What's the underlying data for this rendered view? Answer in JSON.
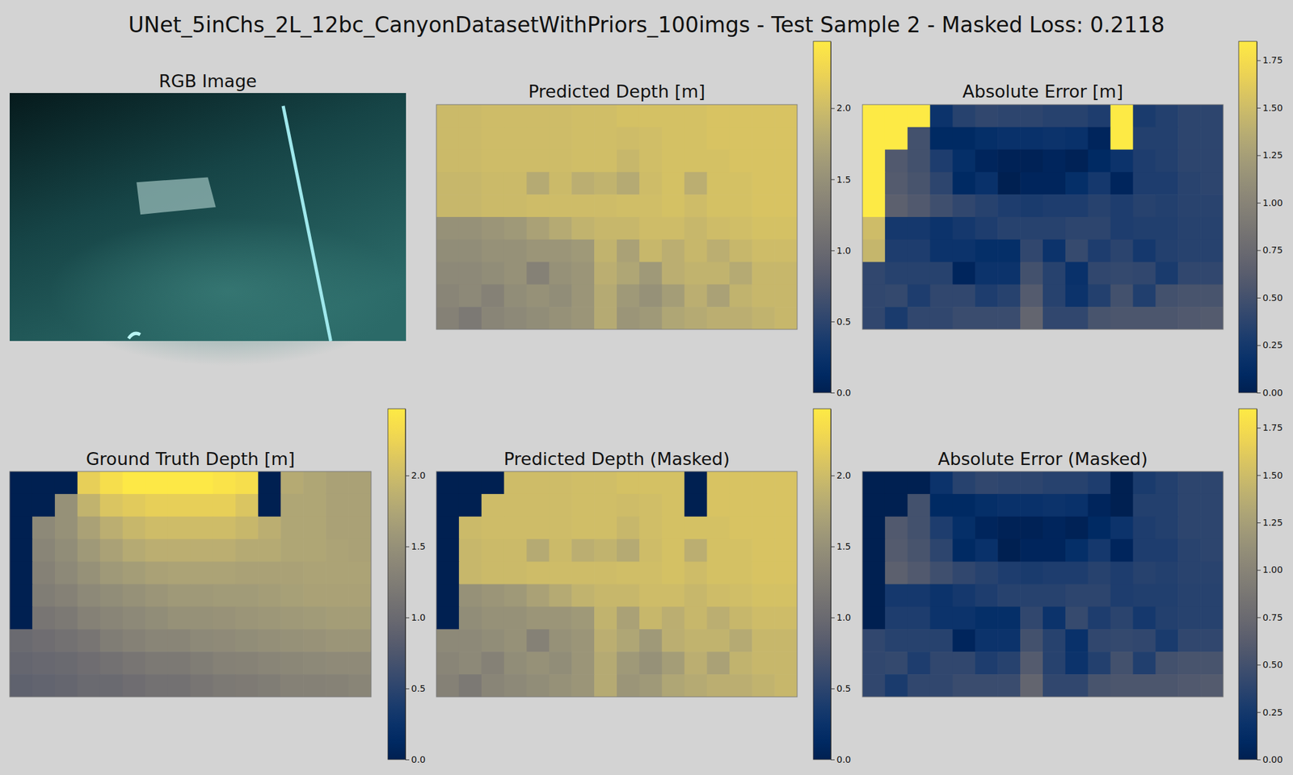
{
  "title": "UNet_5inChs_2L_12bc_CanyonDatasetWithPriors_100imgs - Test Sample 2 - Masked Loss: 0.2118",
  "chart_data": [
    {
      "type": "image",
      "title": "RGB Image"
    },
    {
      "type": "heatmap",
      "title": "Predicted Depth [m]",
      "color": "cividis",
      "tick_labels": false,
      "cells": [
        [
          1.98,
          1.98,
          2.0,
          2.0,
          2.0,
          2.0,
          2.02,
          2.02,
          2.05,
          2.05,
          2.05,
          2.05,
          2.08,
          2.08,
          2.08,
          2.08
        ],
        [
          1.98,
          1.98,
          2.0,
          2.0,
          2.0,
          2.0,
          2.02,
          2.02,
          2.0,
          2.02,
          2.05,
          2.05,
          2.08,
          2.08,
          2.08,
          2.08
        ],
        [
          1.98,
          1.98,
          2.0,
          2.0,
          2.0,
          2.0,
          2.02,
          2.02,
          1.95,
          2.02,
          2.05,
          2.05,
          2.05,
          2.08,
          2.08,
          2.08
        ],
        [
          1.95,
          1.95,
          1.98,
          1.98,
          1.8,
          1.98,
          1.85,
          1.9,
          1.8,
          2.0,
          2.05,
          1.85,
          2.05,
          2.05,
          2.08,
          2.08
        ],
        [
          1.95,
          1.95,
          1.98,
          1.98,
          2.0,
          2.0,
          2.0,
          2.0,
          2.02,
          2.02,
          2.05,
          2.0,
          2.05,
          2.05,
          2.08,
          2.08
        ],
        [
          1.5,
          1.5,
          1.55,
          1.6,
          1.7,
          1.8,
          1.9,
          1.95,
          1.95,
          2.0,
          2.0,
          1.95,
          2.0,
          2.02,
          2.05,
          2.05
        ],
        [
          1.45,
          1.45,
          1.5,
          1.5,
          1.55,
          1.55,
          1.6,
          1.9,
          1.7,
          1.95,
          1.85,
          1.95,
          1.85,
          1.95,
          2.0,
          2.0
        ],
        [
          1.4,
          1.4,
          1.45,
          1.5,
          1.3,
          1.5,
          1.55,
          1.85,
          1.75,
          1.6,
          1.85,
          1.9,
          1.9,
          1.8,
          1.95,
          1.95
        ],
        [
          1.35,
          1.4,
          1.3,
          1.45,
          1.5,
          1.45,
          1.55,
          1.8,
          1.6,
          1.5,
          1.65,
          1.85,
          1.7,
          1.9,
          1.95,
          1.95
        ],
        [
          1.3,
          1.2,
          1.35,
          1.4,
          1.45,
          1.5,
          1.55,
          1.8,
          1.55,
          1.6,
          1.75,
          1.8,
          1.85,
          1.85,
          1.9,
          1.95
        ]
      ],
      "colorbar": {
        "range": [
          0,
          2.47
        ],
        "ticks": [
          {
            "value": 0,
            "label": "0.0"
          },
          {
            "value": 0.5,
            "label": "0.5"
          },
          {
            "value": 1,
            "label": "1.0"
          },
          {
            "value": 1.5,
            "label": "1.5"
          },
          {
            "value": 2,
            "label": "2.0"
          }
        ]
      }
    },
    {
      "type": "heatmap",
      "title": "Absolute Error [m]",
      "color": "cividis",
      "tick_labels": false,
      "cells": [
        [
          1.85,
          1.85,
          1.85,
          0.2,
          0.35,
          0.4,
          0.38,
          0.38,
          0.35,
          0.35,
          0.3,
          1.85,
          0.28,
          0.33,
          0.38,
          0.38
        ],
        [
          1.85,
          1.85,
          0.5,
          0.1,
          0.1,
          0.15,
          0.18,
          0.18,
          0.2,
          0.18,
          0.05,
          1.85,
          0.33,
          0.33,
          0.38,
          0.38
        ],
        [
          1.85,
          0.58,
          0.5,
          0.3,
          0.15,
          0.05,
          0.02,
          0.02,
          0.05,
          0.02,
          0.1,
          0.2,
          0.3,
          0.33,
          0.38,
          0.38
        ],
        [
          1.85,
          0.6,
          0.53,
          0.38,
          0.1,
          0.18,
          0.0,
          0.05,
          0.05,
          0.15,
          0.25,
          0.05,
          0.3,
          0.3,
          0.36,
          0.38
        ],
        [
          1.85,
          0.65,
          0.58,
          0.48,
          0.4,
          0.35,
          0.3,
          0.28,
          0.3,
          0.3,
          0.35,
          0.3,
          0.35,
          0.33,
          0.36,
          0.36
        ],
        [
          1.5,
          0.25,
          0.25,
          0.2,
          0.25,
          0.3,
          0.35,
          0.35,
          0.35,
          0.38,
          0.38,
          0.3,
          0.32,
          0.32,
          0.35,
          0.35
        ],
        [
          1.45,
          0.3,
          0.3,
          0.2,
          0.2,
          0.15,
          0.15,
          0.4,
          0.2,
          0.43,
          0.3,
          0.37,
          0.25,
          0.33,
          0.35,
          0.35
        ],
        [
          0.4,
          0.35,
          0.35,
          0.35,
          0.05,
          0.2,
          0.2,
          0.5,
          0.35,
          0.18,
          0.4,
          0.42,
          0.4,
          0.28,
          0.4,
          0.4
        ],
        [
          0.4,
          0.42,
          0.3,
          0.4,
          0.4,
          0.3,
          0.35,
          0.6,
          0.35,
          0.2,
          0.33,
          0.5,
          0.32,
          0.5,
          0.53,
          0.53
        ],
        [
          0.4,
          0.28,
          0.4,
          0.4,
          0.45,
          0.45,
          0.45,
          0.7,
          0.4,
          0.4,
          0.53,
          0.55,
          0.55,
          0.55,
          0.58,
          0.6
        ]
      ],
      "colorbar": {
        "range": [
          0,
          1.85
        ],
        "ticks": [
          {
            "value": 0,
            "label": "0.00"
          },
          {
            "value": 0.25,
            "label": "0.25"
          },
          {
            "value": 0.5,
            "label": "0.50"
          },
          {
            "value": 0.75,
            "label": "0.75"
          },
          {
            "value": 1,
            "label": "1.00"
          },
          {
            "value": 1.25,
            "label": "1.25"
          },
          {
            "value": 1.5,
            "label": "1.50"
          },
          {
            "value": 1.75,
            "label": "1.75"
          }
        ]
      }
    },
    {
      "type": "heatmap",
      "title": "Ground Truth Depth [m]",
      "color": "cividis",
      "tick_labels": false,
      "cells": [
        [
          0,
          0,
          0,
          2.2,
          2.35,
          2.45,
          2.45,
          2.45,
          2.45,
          2.4,
          2.35,
          0,
          1.8,
          1.75,
          1.7,
          1.7
        ],
        [
          0,
          0,
          1.5,
          1.9,
          2.1,
          2.15,
          2.2,
          2.2,
          2.2,
          2.2,
          2.1,
          0,
          1.75,
          1.75,
          1.7,
          1.7
        ],
        [
          0,
          1.4,
          1.5,
          1.7,
          1.85,
          1.95,
          2.0,
          2.0,
          2.0,
          2.0,
          1.95,
          1.85,
          1.75,
          1.75,
          1.7,
          1.7
        ],
        [
          0,
          1.35,
          1.45,
          1.6,
          1.7,
          1.8,
          1.85,
          1.85,
          1.85,
          1.85,
          1.8,
          1.8,
          1.75,
          1.75,
          1.72,
          1.7
        ],
        [
          0,
          1.3,
          1.4,
          1.5,
          1.6,
          1.65,
          1.7,
          1.72,
          1.72,
          1.72,
          1.7,
          1.7,
          1.7,
          1.72,
          1.72,
          1.72
        ],
        [
          0,
          1.25,
          1.3,
          1.4,
          1.45,
          1.5,
          1.55,
          1.6,
          1.6,
          1.62,
          1.62,
          1.65,
          1.68,
          1.7,
          1.7,
          1.7
        ],
        [
          0,
          1.15,
          1.2,
          1.3,
          1.35,
          1.4,
          1.45,
          1.5,
          1.5,
          1.52,
          1.55,
          1.58,
          1.6,
          1.62,
          1.65,
          1.65
        ],
        [
          1.0,
          1.05,
          1.1,
          1.15,
          1.25,
          1.3,
          1.35,
          1.35,
          1.4,
          1.42,
          1.45,
          1.48,
          1.5,
          1.52,
          1.55,
          1.55
        ],
        [
          0.95,
          0.98,
          1.0,
          1.05,
          1.1,
          1.15,
          1.2,
          1.2,
          1.25,
          1.3,
          1.32,
          1.35,
          1.38,
          1.4,
          1.42,
          1.42
        ],
        [
          0.9,
          0.92,
          0.95,
          1.0,
          1.0,
          1.05,
          1.1,
          1.1,
          1.15,
          1.2,
          1.22,
          1.25,
          1.3,
          1.3,
          1.32,
          1.35
        ]
      ],
      "colorbar": {
        "range": [
          0,
          2.47
        ],
        "ticks": [
          {
            "value": 0,
            "label": "0.0"
          },
          {
            "value": 0.5,
            "label": "0.5"
          },
          {
            "value": 1,
            "label": "1.0"
          },
          {
            "value": 1.5,
            "label": "1.5"
          },
          {
            "value": 2,
            "label": "2.0"
          }
        ]
      }
    },
    {
      "type": "heatmap",
      "title": "Predicted Depth (Masked)",
      "color": "cividis",
      "tick_labels": false,
      "cells": [
        [
          0,
          0,
          0,
          2.0,
          2.0,
          2.0,
          2.02,
          2.02,
          2.05,
          2.05,
          2.05,
          0,
          2.08,
          2.08,
          2.08,
          2.08
        ],
        [
          0,
          0,
          2.0,
          2.0,
          2.0,
          2.0,
          2.02,
          2.02,
          2.0,
          2.02,
          2.05,
          0,
          2.08,
          2.08,
          2.08,
          2.08
        ],
        [
          0,
          1.98,
          2.0,
          2.0,
          2.0,
          2.0,
          2.02,
          2.02,
          1.95,
          2.02,
          2.05,
          2.05,
          2.05,
          2.08,
          2.08,
          2.08
        ],
        [
          0,
          1.95,
          1.98,
          1.98,
          1.8,
          1.98,
          1.85,
          1.9,
          1.8,
          2.0,
          2.05,
          1.85,
          2.05,
          2.05,
          2.08,
          2.08
        ],
        [
          0,
          1.95,
          1.98,
          1.98,
          2.0,
          2.0,
          2.0,
          2.0,
          2.02,
          2.02,
          2.05,
          2.0,
          2.05,
          2.05,
          2.08,
          2.08
        ],
        [
          0,
          1.5,
          1.55,
          1.6,
          1.7,
          1.8,
          1.9,
          1.95,
          1.95,
          2.0,
          2.0,
          1.95,
          2.0,
          2.02,
          2.05,
          2.05
        ],
        [
          0,
          1.45,
          1.5,
          1.5,
          1.55,
          1.55,
          1.6,
          1.9,
          1.7,
          1.95,
          1.85,
          1.95,
          1.85,
          1.95,
          2.0,
          2.0
        ],
        [
          1.4,
          1.4,
          1.45,
          1.5,
          1.3,
          1.5,
          1.55,
          1.85,
          1.75,
          1.6,
          1.85,
          1.9,
          1.9,
          1.8,
          1.95,
          1.95
        ],
        [
          1.35,
          1.4,
          1.3,
          1.45,
          1.5,
          1.45,
          1.55,
          1.8,
          1.6,
          1.5,
          1.65,
          1.85,
          1.7,
          1.9,
          1.95,
          1.95
        ],
        [
          1.3,
          1.2,
          1.35,
          1.4,
          1.45,
          1.5,
          1.55,
          1.8,
          1.55,
          1.6,
          1.75,
          1.8,
          1.85,
          1.85,
          1.9,
          1.95
        ]
      ],
      "colorbar": {
        "range": [
          0,
          2.47
        ],
        "ticks": [
          {
            "value": 0,
            "label": "0.0"
          },
          {
            "value": 0.5,
            "label": "0.5"
          },
          {
            "value": 1,
            "label": "1.0"
          },
          {
            "value": 1.5,
            "label": "1.5"
          },
          {
            "value": 2,
            "label": "2.0"
          }
        ]
      }
    },
    {
      "type": "heatmap",
      "title": "Absolute Error (Masked)",
      "color": "cividis",
      "tick_labels": false,
      "cells": [
        [
          0,
          0,
          0,
          0.2,
          0.35,
          0.4,
          0.38,
          0.38,
          0.35,
          0.35,
          0.3,
          0,
          0.28,
          0.33,
          0.38,
          0.38
        ],
        [
          0,
          0,
          0.5,
          0.1,
          0.1,
          0.15,
          0.18,
          0.18,
          0.2,
          0.18,
          0.05,
          0,
          0.33,
          0.33,
          0.38,
          0.38
        ],
        [
          0,
          0.58,
          0.5,
          0.3,
          0.15,
          0.05,
          0.02,
          0.02,
          0.05,
          0.02,
          0.1,
          0.2,
          0.3,
          0.33,
          0.38,
          0.38
        ],
        [
          0,
          0.6,
          0.53,
          0.38,
          0.1,
          0.18,
          0.0,
          0.05,
          0.05,
          0.15,
          0.25,
          0.05,
          0.3,
          0.3,
          0.36,
          0.38
        ],
        [
          0,
          0.65,
          0.58,
          0.48,
          0.4,
          0.35,
          0.3,
          0.28,
          0.3,
          0.3,
          0.35,
          0.3,
          0.35,
          0.33,
          0.36,
          0.36
        ],
        [
          0,
          0.25,
          0.25,
          0.2,
          0.25,
          0.3,
          0.35,
          0.35,
          0.35,
          0.38,
          0.38,
          0.3,
          0.32,
          0.32,
          0.35,
          0.35
        ],
        [
          0,
          0.3,
          0.3,
          0.2,
          0.2,
          0.15,
          0.15,
          0.4,
          0.2,
          0.43,
          0.3,
          0.37,
          0.25,
          0.33,
          0.35,
          0.35
        ],
        [
          0.4,
          0.35,
          0.35,
          0.35,
          0.05,
          0.2,
          0.2,
          0.5,
          0.35,
          0.18,
          0.4,
          0.42,
          0.4,
          0.28,
          0.4,
          0.4
        ],
        [
          0.4,
          0.42,
          0.3,
          0.4,
          0.4,
          0.3,
          0.35,
          0.6,
          0.35,
          0.2,
          0.33,
          0.5,
          0.32,
          0.5,
          0.53,
          0.53
        ],
        [
          0.4,
          0.28,
          0.4,
          0.4,
          0.45,
          0.45,
          0.45,
          0.7,
          0.4,
          0.4,
          0.53,
          0.55,
          0.55,
          0.55,
          0.58,
          0.6
        ]
      ],
      "colorbar": {
        "range": [
          0,
          1.85
        ],
        "ticks": [
          {
            "value": 0,
            "label": "0.00"
          },
          {
            "value": 0.25,
            "label": "0.25"
          },
          {
            "value": 0.5,
            "label": "0.50"
          },
          {
            "value": 0.75,
            "label": "0.75"
          },
          {
            "value": 1,
            "label": "1.00"
          },
          {
            "value": 1.25,
            "label": "1.25"
          },
          {
            "value": 1.5,
            "label": "1.50"
          },
          {
            "value": 1.75,
            "label": "1.75"
          }
        ]
      }
    }
  ]
}
